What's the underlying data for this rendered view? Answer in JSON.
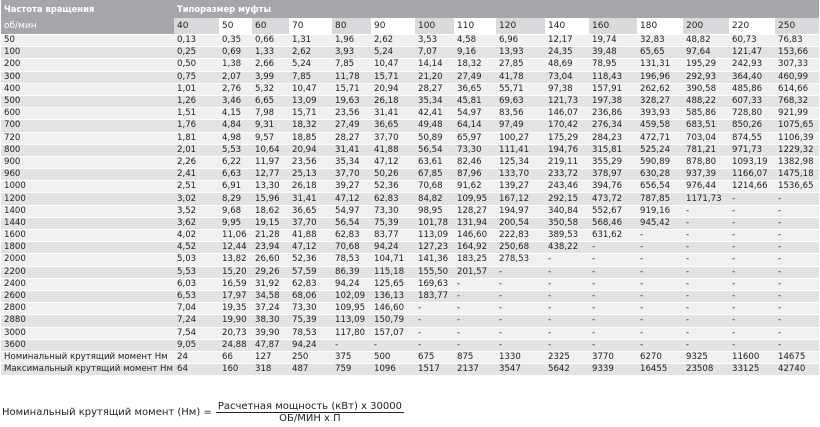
{
  "table": {
    "header": {
      "speed_label": "Частота вращения",
      "size_label": "Типоразмер муфты",
      "rpm_label": "об/мин"
    },
    "sizes": [
      "40",
      "50",
      "60",
      "70",
      "80",
      "90",
      "100",
      "110",
      "120",
      "140",
      "160",
      "180",
      "200",
      "220",
      "250"
    ],
    "rows": [
      [
        "50",
        "0,13",
        "0,35",
        "0,66",
        "1,31",
        "1,96",
        "2,62",
        "3,53",
        "4,58",
        "6,96",
        "12,17",
        "19,74",
        "32,83",
        "48,82",
        "60,73",
        "76,83"
      ],
      [
        "100",
        "0,25",
        "0,69",
        "1,33",
        "2,62",
        "3,93",
        "5,24",
        "7,07",
        "9,16",
        "13,93",
        "24,35",
        "39,48",
        "65,65",
        "97,64",
        "121,47",
        "153,66"
      ],
      [
        "200",
        "0,50",
        "1,38",
        "2,66",
        "5,24",
        "7,85",
        "10,47",
        "14,14",
        "18,32",
        "27,85",
        "48,69",
        "78,95",
        "131,31",
        "195,29",
        "242,93",
        "307,33"
      ],
      [
        "300",
        "0,75",
        "2,07",
        "3,99",
        "7,85",
        "11,78",
        "15,71",
        "21,20",
        "27,49",
        "41,78",
        "73,04",
        "118,43",
        "196,96",
        "292,93",
        "364,40",
        "460,99"
      ],
      [
        "400",
        "1,01",
        "2,76",
        "5,32",
        "10,47",
        "15,71",
        "20,94",
        "28,27",
        "36,65",
        "55,71",
        "97,38",
        "157,91",
        "262,62",
        "390,58",
        "485,86",
        "614,66"
      ],
      [
        "500",
        "1,26",
        "3,46",
        "6,65",
        "13,09",
        "19,63",
        "26,18",
        "35,34",
        "45,81",
        "69,63",
        "121,73",
        "197,38",
        "328,27",
        "488,22",
        "607,33",
        "768,32"
      ],
      [
        "600",
        "1,51",
        "4,15",
        "7,98",
        "15,71",
        "23,56",
        "31,41",
        "42,41",
        "54,97",
        "83,56",
        "146,07",
        "236,86",
        "393,93",
        "585,86",
        "728,80",
        "921,99"
      ],
      [
        "700",
        "1,76",
        "4,84",
        "9,31",
        "18,32",
        "27,49",
        "36,65",
        "49,48",
        "64,14",
        "97,49",
        "170,42",
        "276,34",
        "459,58",
        "683,51",
        "850,26",
        "1075,65"
      ],
      [
        "720",
        "1,81",
        "4,98",
        "9,57",
        "18,85",
        "28,27",
        "37,70",
        "50,89",
        "65,97",
        "100,27",
        "175,29",
        "284,23",
        "472,71",
        "703,04",
        "874,55",
        "1106,39"
      ],
      [
        "800",
        "2,01",
        "5,53",
        "10,64",
        "20,94",
        "31,41",
        "41,88",
        "56,54",
        "73,30",
        "111,41",
        "194,76",
        "315,81",
        "525,24",
        "781,21",
        "971,73",
        "1229,32"
      ],
      [
        "900",
        "2,26",
        "6,22",
        "11,97",
        "23,56",
        "35,34",
        "47,12",
        "63,61",
        "82,46",
        "125,34",
        "219,11",
        "355,29",
        "590,89",
        "878,80",
        "1093,19",
        "1382,98"
      ],
      [
        "960",
        "2,41",
        "6,63",
        "12,77",
        "25,13",
        "37,70",
        "50,26",
        "67,85",
        "87,96",
        "133,70",
        "233,72",
        "378,97",
        "630,28",
        "937,39",
        "1166,07",
        "1475,18"
      ],
      [
        "1000",
        "2,51",
        "6,91",
        "13,30",
        "26,18",
        "39,27",
        "52,36",
        "70,68",
        "91,62",
        "139,27",
        "243,46",
        "394,76",
        "656,54",
        "976,44",
        "1214,66",
        "1536,65"
      ],
      [
        "1200",
        "3,02",
        "8,29",
        "15,96",
        "31,41",
        "47,12",
        "62,83",
        "84,82",
        "109,95",
        "167,12",
        "292,15",
        "473,72",
        "787,85",
        "1171,73",
        "-",
        "-"
      ],
      [
        "1400",
        "3,52",
        "9,68",
        "18,62",
        "36,65",
        "54,97",
        "73,30",
        "98,95",
        "128,27",
        "194,97",
        "340,84",
        "552,67",
        "919,16",
        "-",
        "-",
        "-"
      ],
      [
        "1440",
        "3,62",
        "9,95",
        "19,15",
        "37,70",
        "56,54",
        "75,39",
        "101,78",
        "131,94",
        "200,54",
        "350,58",
        "568,46",
        "945,42",
        "-",
        "-",
        "-"
      ],
      [
        "1600",
        "4,02",
        "11,06",
        "21,28",
        "41,88",
        "62,83",
        "83,77",
        "113,09",
        "146,60",
        "222,83",
        "389,53",
        "631,62",
        "-",
        "-",
        "-",
        "-"
      ],
      [
        "1800",
        "4,52",
        "12,44",
        "23,94",
        "47,12",
        "70,68",
        "94,24",
        "127,23",
        "164,92",
        "250,68",
        "438,22",
        "-",
        "-",
        "-",
        "-",
        "-"
      ],
      [
        "2000",
        "5,03",
        "13,82",
        "26,60",
        "52,36",
        "78,53",
        "104,71",
        "141,36",
        "183,25",
        "278,53",
        "-",
        "-",
        "-",
        "-",
        "-",
        "-"
      ],
      [
        "2200",
        "5,53",
        "15,20",
        "29,26",
        "57,59",
        "86,39",
        "115,18",
        "155,50",
        "201,57",
        "-",
        "-",
        "-",
        "-",
        "-",
        "-",
        "-"
      ],
      [
        "2400",
        "6,03",
        "16,59",
        "31,92",
        "62,83",
        "94,24",
        "125,65",
        "169,63",
        "-",
        "-",
        "-",
        "-",
        "-",
        "-",
        "-",
        "-"
      ],
      [
        "2600",
        "6,53",
        "17,97",
        "34,58",
        "68,06",
        "102,09",
        "136,13",
        "183,77",
        "-",
        "-",
        "-",
        "-",
        "-",
        "-",
        "-",
        "-"
      ],
      [
        "2800",
        "7,04",
        "19,35",
        "37,24",
        "73,30",
        "109,95",
        "146,60",
        "-",
        "-",
        "-",
        "-",
        "-",
        "-",
        "-",
        "-",
        "-"
      ],
      [
        "2880",
        "7,24",
        "19,90",
        "38,30",
        "75,39",
        "113,09",
        "150,79",
        "-",
        "-",
        "-",
        "-",
        "-",
        "-",
        "-",
        "-",
        "-"
      ],
      [
        "3000",
        "7,54",
        "20,73",
        "39,90",
        "78,53",
        "117,80",
        "157,07",
        "-",
        "-",
        "-",
        "-",
        "-",
        "-",
        "-",
        "-",
        "-"
      ],
      [
        "3600",
        "9,05",
        "24,88",
        "47,87",
        "94,24",
        "-",
        "-",
        "-",
        "-",
        "-",
        "-",
        "-",
        "-",
        "-",
        "-",
        "-"
      ],
      [
        "Номинальный крутящий момент Нм",
        "24",
        "66",
        "127",
        "250",
        "375",
        "500",
        "675",
        "875",
        "1330",
        "2325",
        "3770",
        "6270",
        "9325",
        "11600",
        "14675"
      ],
      [
        "Максимальный крутящий момент Нм",
        "64",
        "160",
        "318",
        "487",
        "759",
        "1096",
        "1517",
        "2137",
        "3547",
        "5642",
        "9339",
        "16455",
        "23508",
        "33125",
        "42740"
      ]
    ]
  },
  "formula": {
    "lhs": "Номинальный крутящий момент (Нм) =",
    "numerator": "Расчетная мощность (кВт) x 30000",
    "denominator": "ОБ/МИН x П"
  }
}
